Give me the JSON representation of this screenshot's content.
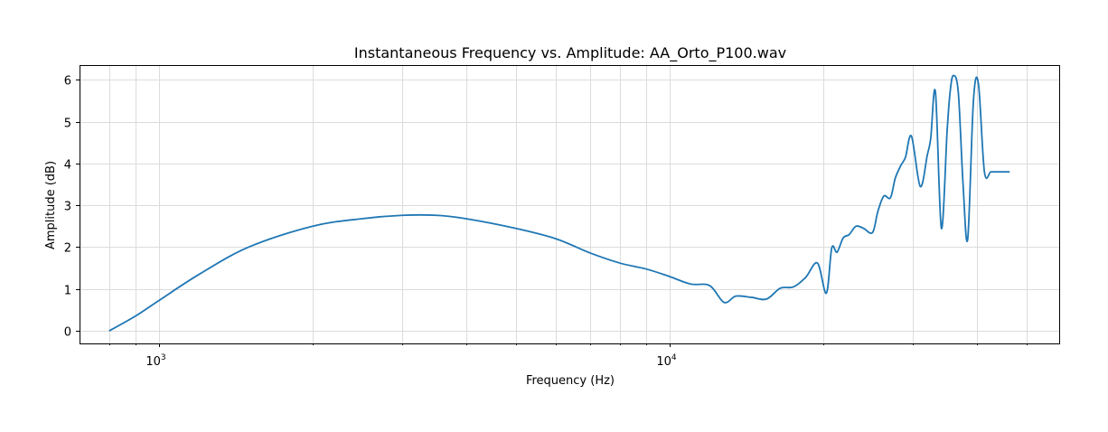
{
  "chart_data": {
    "type": "line",
    "title": "Instantaneous Frequency vs. Amplitude: AA_Orto_P100.wav",
    "xlabel": "Frequency (Hz)",
    "ylabel": "Amplitude (dB)",
    "xscale": "log",
    "xlim": [
      700,
      58000
    ],
    "ylim": [
      -0.3,
      6.35
    ],
    "grid": true,
    "x_major_ticks": [
      {
        "value": 1000,
        "base": "10",
        "exp": "3"
      },
      {
        "value": 10000,
        "base": "10",
        "exp": "4"
      }
    ],
    "y_ticks": [
      0,
      1,
      2,
      3,
      4,
      5,
      6
    ],
    "series_color": "#1f77b4",
    "series": [
      {
        "x": [
          800,
          900,
          1000,
          1200,
          1500,
          2000,
          2500,
          3000,
          3500,
          4000,
          5000,
          6000,
          7000,
          8000,
          9000,
          10000,
          11000,
          12000,
          12800,
          13500,
          14500,
          15500,
          16500,
          17500,
          18500,
          19500,
          20300,
          20800,
          21300,
          21900,
          22500,
          23200,
          24000,
          25000,
          25600,
          26300,
          27100,
          27700,
          28400,
          29000,
          29800,
          31000,
          32000,
          32500,
          33200,
          34100,
          35000,
          35500,
          36000,
          36800,
          37600,
          38400,
          39400,
          40300,
          41400,
          42600,
          43600,
          44300,
          44900,
          45600,
          46400
        ],
        "y": [
          0.0,
          0.35,
          0.72,
          1.35,
          2.0,
          2.5,
          2.68,
          2.76,
          2.76,
          2.68,
          2.45,
          2.2,
          1.86,
          1.62,
          1.48,
          1.3,
          1.12,
          1.08,
          0.68,
          0.83,
          0.8,
          0.76,
          1.02,
          1.05,
          1.28,
          1.62,
          0.9,
          1.98,
          1.88,
          2.22,
          2.3,
          2.5,
          2.45,
          2.35,
          2.85,
          3.22,
          3.18,
          3.65,
          3.95,
          4.15,
          4.65,
          3.45,
          4.2,
          4.6,
          5.7,
          2.45,
          4.8,
          5.75,
          6.1,
          5.7,
          3.5,
          2.2,
          5.5,
          5.9,
          3.8,
          3.8,
          3.8,
          3.8,
          3.8,
          3.8,
          3.8
        ]
      }
    ]
  }
}
